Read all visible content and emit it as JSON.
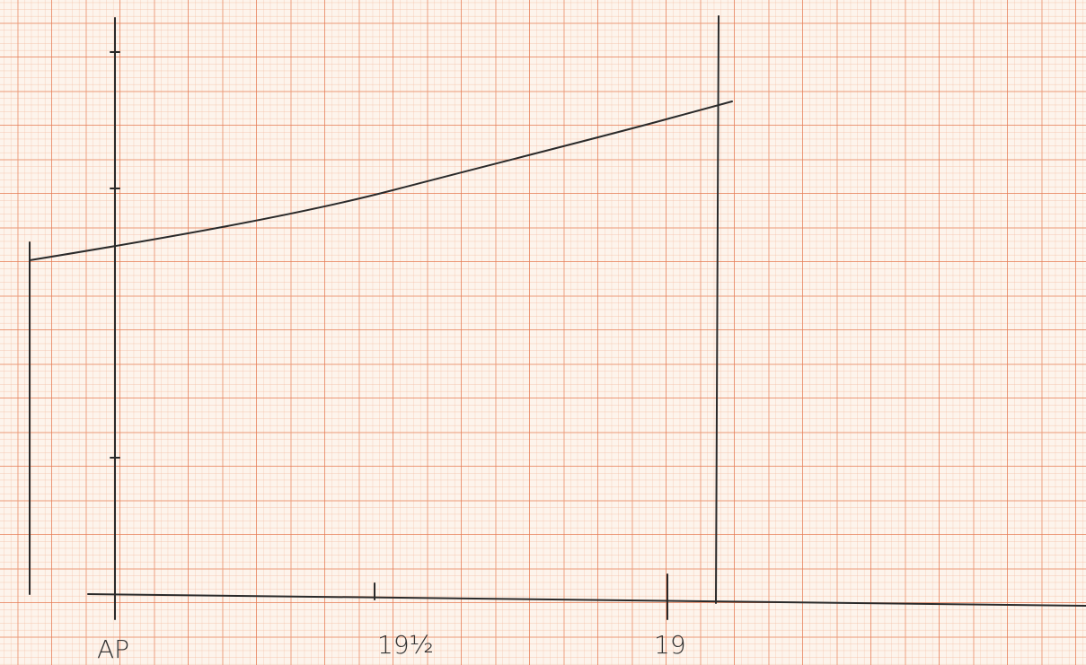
{
  "labels": {
    "aft": "AP",
    "mid": "19½",
    "fwd": "19"
  }
}
